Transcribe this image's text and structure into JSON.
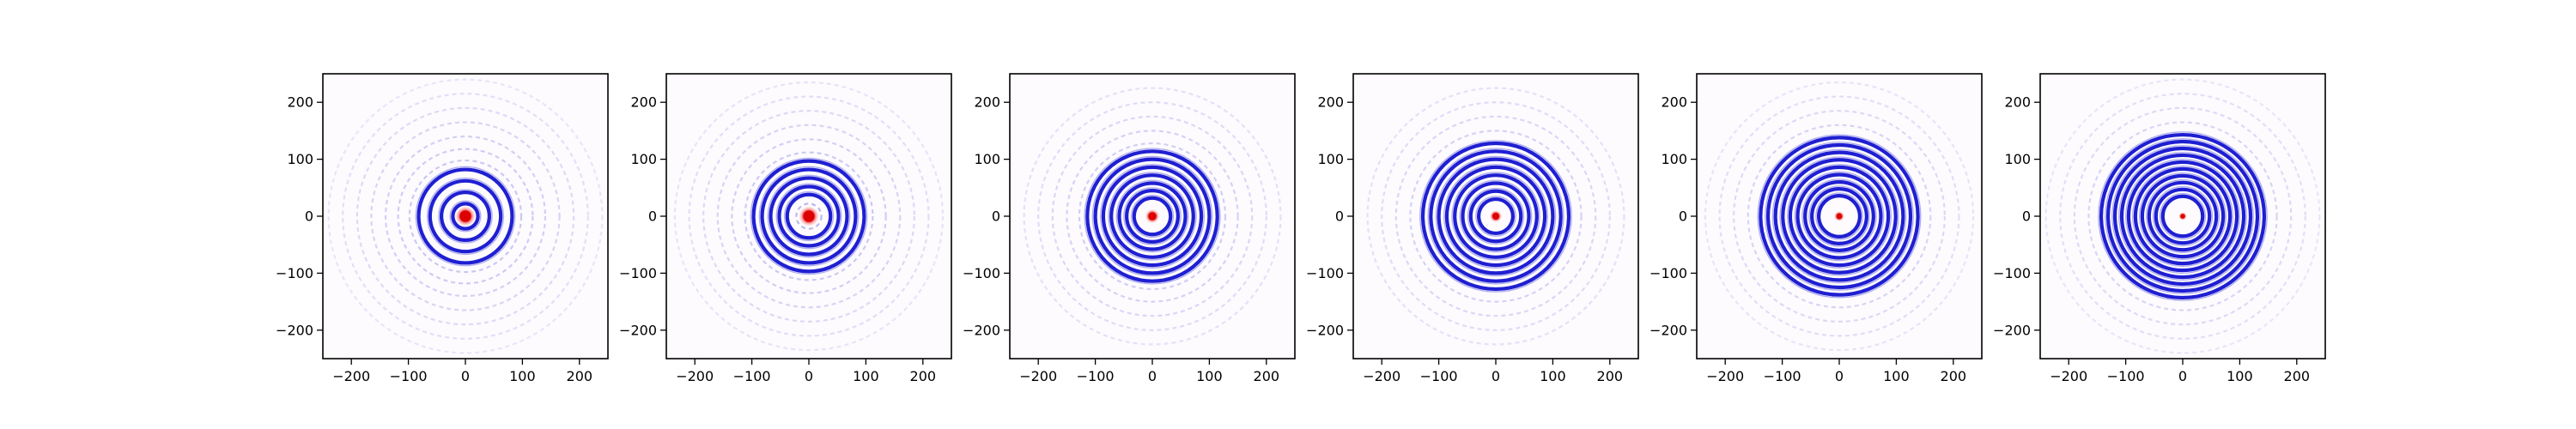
{
  "figure": {
    "background": "#ffffff",
    "panel_count": 6,
    "layout": "single row of six square image panels"
  },
  "chart_data": [
    {
      "type": "heatmap",
      "colormap": "bwr",
      "ring_color": "#0000cc",
      "center_color": "#dd0000",
      "xlim": [
        -250,
        250
      ],
      "ylim": [
        -250,
        250
      ],
      "xticks": [
        -200,
        -100,
        0,
        100,
        200
      ],
      "yticks": [
        -200,
        -100,
        0,
        100,
        200
      ],
      "center": [
        0,
        0
      ],
      "ring_radii": [
        22,
        42,
        62,
        82,
        98,
        118,
        140,
        165,
        190,
        215,
        240
      ],
      "strong_rings": [
        22,
        42,
        62,
        82
      ],
      "center_spot_radius": 10,
      "grid": false
    },
    {
      "type": "heatmap",
      "colormap": "bwr",
      "ring_color": "#0000cc",
      "center_color": "#dd0000",
      "xlim": [
        -250,
        250
      ],
      "ylim": [
        -250,
        250
      ],
      "xticks": [
        -200,
        -100,
        0,
        100,
        200
      ],
      "yticks": [
        -200,
        -100,
        0,
        100,
        200
      ],
      "center": [
        0,
        0
      ],
      "ring_radii": [
        22,
        38,
        52,
        67,
        82,
        97,
        112,
        135,
        160,
        185,
        210,
        235
      ],
      "strong_rings": [
        38,
        52,
        67,
        82,
        97
      ],
      "center_spot_radius": 10,
      "grid": false
    },
    {
      "type": "heatmap",
      "colormap": "bwr",
      "ring_color": "#0000cc",
      "center_color": "#dd0000",
      "xlim": [
        -250,
        250
      ],
      "ylim": [
        -250,
        250
      ],
      "xticks": [
        -200,
        -100,
        0,
        100,
        200
      ],
      "yticks": [
        -200,
        -100,
        0,
        100,
        200
      ],
      "center": [
        0,
        0
      ],
      "ring_radii": [
        32,
        45,
        58,
        72,
        86,
        100,
        114,
        128,
        150,
        175,
        200,
        225
      ],
      "strong_rings": [
        32,
        45,
        58,
        72,
        86,
        100,
        114
      ],
      "center_spot_radius": 7,
      "grid": false
    },
    {
      "type": "heatmap",
      "colormap": "bwr",
      "ring_color": "#0000cc",
      "center_color": "#dd0000",
      "xlim": [
        -250,
        250
      ],
      "ylim": [
        -250,
        250
      ],
      "xticks": [
        -200,
        -100,
        0,
        100,
        200
      ],
      "yticks": [
        -200,
        -100,
        0,
        100,
        200
      ],
      "center": [
        0,
        0
      ],
      "ring_radii": [
        30,
        44,
        58,
        72,
        86,
        100,
        114,
        128,
        150,
        175,
        200,
        225
      ],
      "strong_rings": [
        30,
        44,
        58,
        72,
        86,
        100,
        114,
        128
      ],
      "center_spot_radius": 6,
      "grid": false
    },
    {
      "type": "heatmap",
      "colormap": "bwr",
      "ring_color": "#0000cc",
      "center_color": "#dd0000",
      "xlim": [
        -250,
        250
      ],
      "ylim": [
        -250,
        250
      ],
      "xticks": [
        -200,
        -100,
        0,
        100,
        200
      ],
      "yticks": [
        -200,
        -100,
        0,
        100,
        200
      ],
      "center": [
        0,
        0
      ],
      "ring_radii": [
        36,
        48,
        60,
        73,
        86,
        99,
        112,
        125,
        138,
        160,
        185,
        210,
        235
      ],
      "strong_rings": [
        36,
        48,
        60,
        73,
        86,
        99,
        112,
        125,
        138
      ],
      "center_spot_radius": 5,
      "grid": false
    },
    {
      "type": "heatmap",
      "colormap": "bwr",
      "ring_color": "#0000cc",
      "center_color": "#dd0000",
      "xlim": [
        -250,
        250
      ],
      "ylim": [
        -250,
        250
      ],
      "xticks": [
        -200,
        -100,
        0,
        100,
        200
      ],
      "yticks": [
        -200,
        -100,
        0,
        100,
        200
      ],
      "center": [
        0,
        0
      ],
      "ring_radii": [
        35,
        47,
        59,
        71,
        83,
        95,
        107,
        119,
        131,
        143,
        165,
        190,
        215,
        240
      ],
      "strong_rings": [
        35,
        47,
        59,
        71,
        83,
        95,
        107,
        119,
        131,
        143
      ],
      "center_spot_radius": 4,
      "grid": false
    }
  ]
}
